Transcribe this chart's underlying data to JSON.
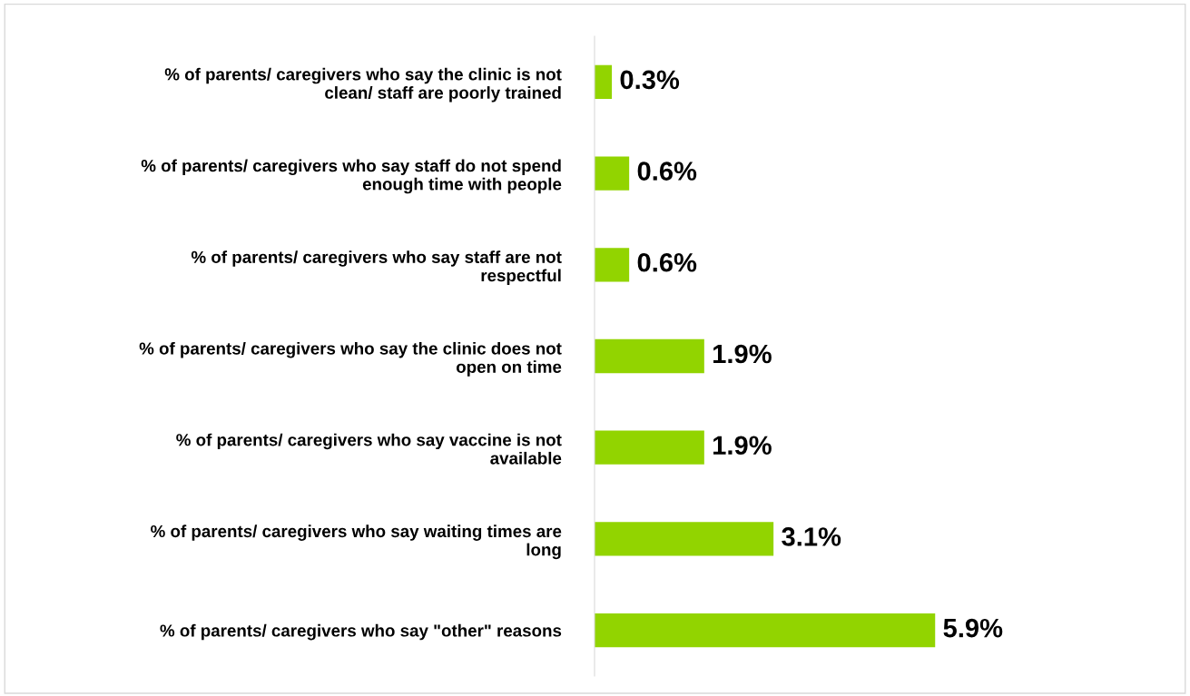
{
  "chart_data": {
    "type": "bar",
    "orientation": "horizontal",
    "categories": [
      "% of parents/ caregivers who say the clinic is not\nclean/ staff are poorly trained",
      "% of parents/ caregivers who say staff do not spend\nenough time with people",
      "% of parents/ caregivers who say staff are not\nrespectful",
      "% of parents/ caregivers who say the clinic does not\nopen on time",
      "% of parents/ caregivers who say vaccine is not\navailable",
      "% of parents/ caregivers who say waiting times are\nlong",
      "% of parents/ caregivers who say \"other\" reasons"
    ],
    "values": [
      0.3,
      0.6,
      0.6,
      1.9,
      1.9,
      3.1,
      5.9
    ],
    "value_labels": [
      "0.3%",
      "0.6%",
      "0.6%",
      "1.9%",
      "1.9%",
      "3.1%",
      "5.9%"
    ],
    "color": "#92d400",
    "grid": false,
    "legend": false
  }
}
